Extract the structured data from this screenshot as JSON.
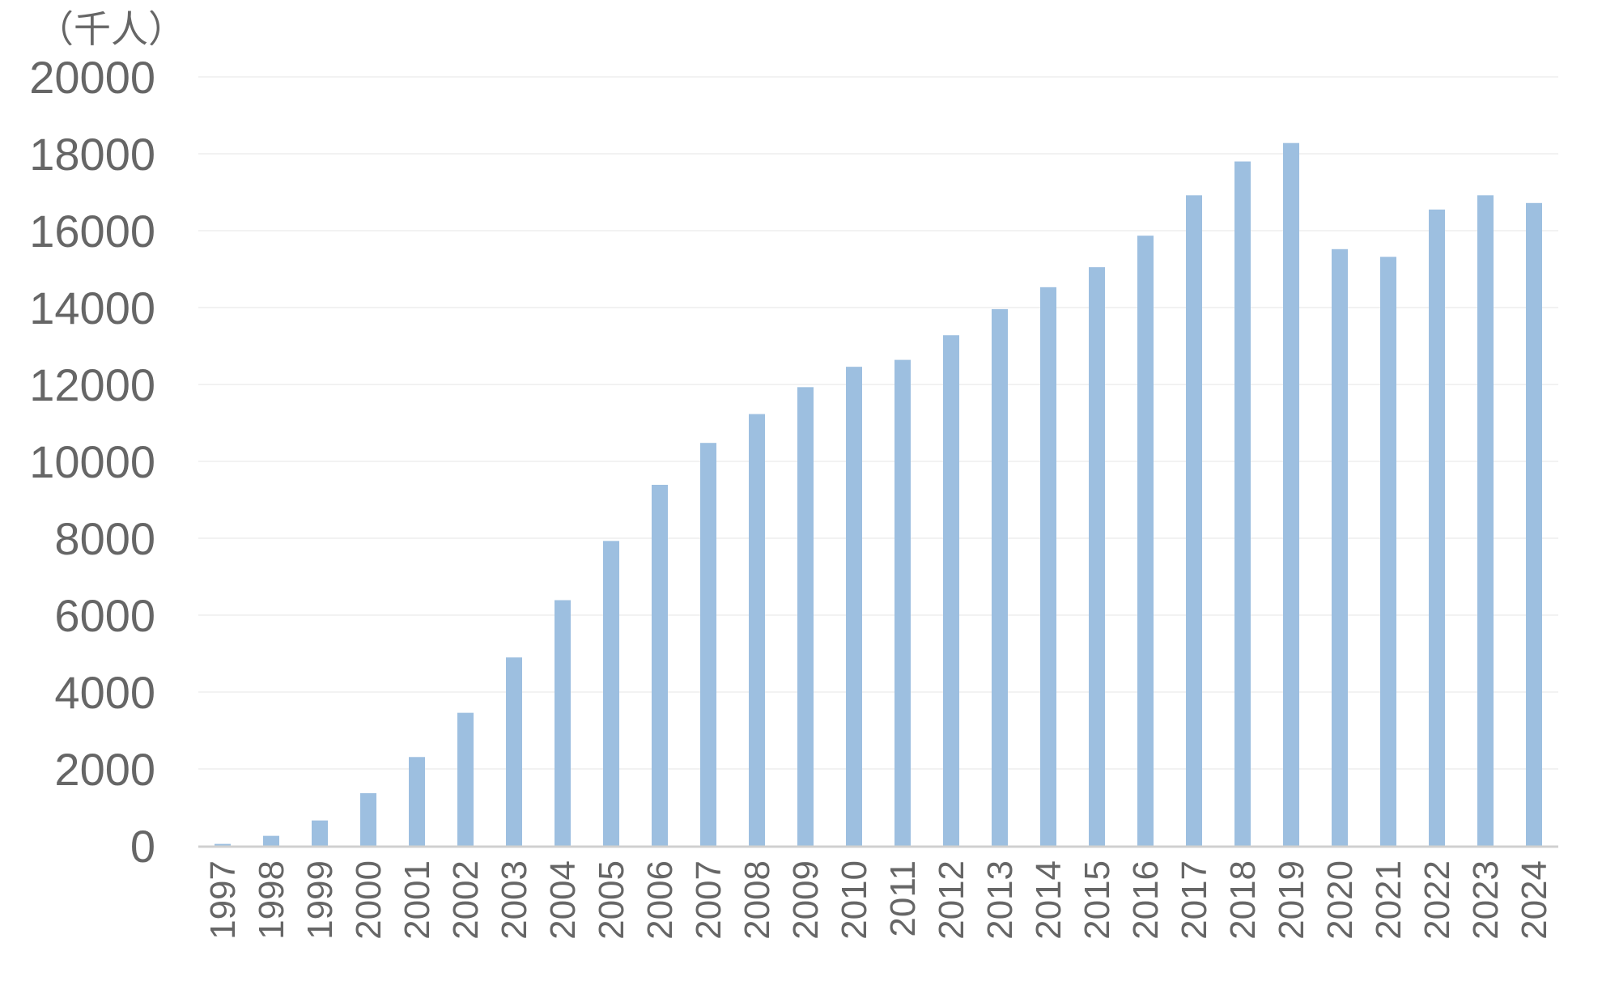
{
  "chart_data": {
    "type": "bar",
    "ylabel": "（千人）",
    "categories": [
      "1997",
      "1998",
      "1999",
      "2000",
      "2001",
      "2002",
      "2003",
      "2004",
      "2005",
      "2006",
      "2007",
      "2008",
      "2009",
      "2010",
      "2011",
      "2012",
      "2013",
      "2014",
      "2015",
      "2016",
      "2017",
      "2018",
      "2019",
      "2020",
      "2021",
      "2022",
      "2023",
      "2024"
    ],
    "series": [
      {
        "values": [
          50,
          260,
          660,
          1370,
          2310,
          3460,
          4900,
          6390,
          7930,
          9390,
          10480,
          11230,
          11930,
          12460,
          12640,
          13280,
          13960,
          14530,
          15050,
          15870,
          16920,
          17800,
          18280,
          15520,
          15320,
          16550,
          16920,
          16720
        ]
      }
    ],
    "yticks": [
      0,
      2000,
      4000,
      6000,
      8000,
      10000,
      12000,
      14000,
      16000,
      18000,
      20000
    ],
    "ylim": [
      0,
      20000
    ],
    "grid": true,
    "colors": {
      "bar": "#9dbfe0",
      "grid": "#eeeeee",
      "axis": "#d0d0d0",
      "text": "#666666"
    }
  }
}
